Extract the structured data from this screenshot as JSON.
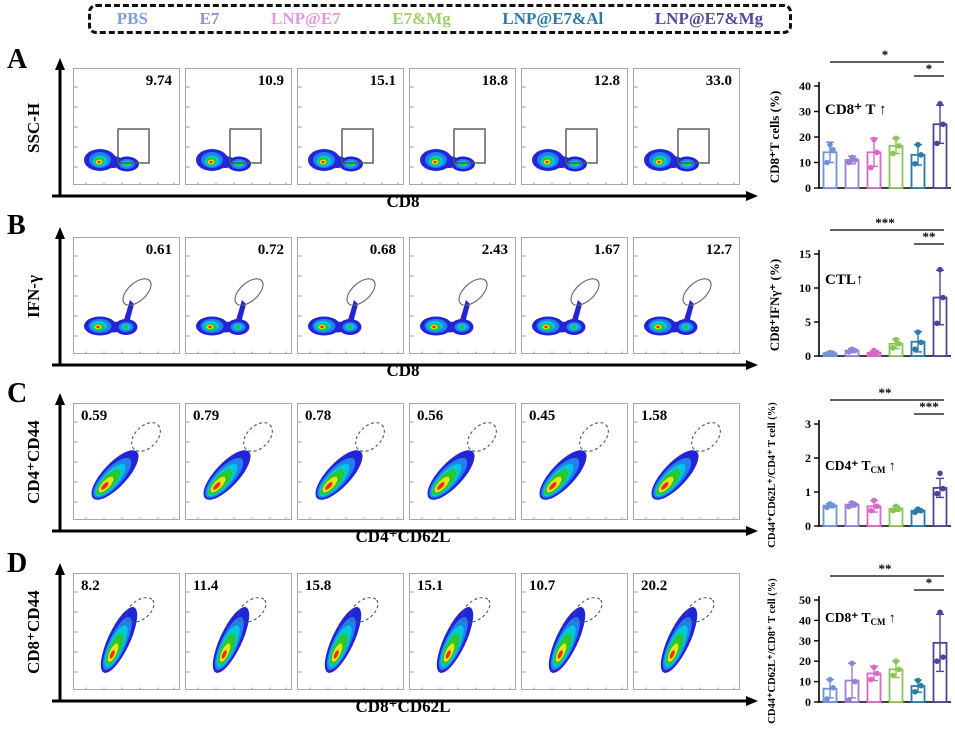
{
  "legend": {
    "items": [
      {
        "label": "PBS",
        "color": "#7d9fd9"
      },
      {
        "label": "E7",
        "color": "#a08ad8"
      },
      {
        "label": "LNP@E7",
        "color": "#e39ae0"
      },
      {
        "label": "E7&Mg",
        "color": "#9ed06a"
      },
      {
        "label": "LNP@E7&Al",
        "color": "#2a7ca8"
      },
      {
        "label": "LNP@E7&Mg",
        "color": "#574a9e"
      }
    ]
  },
  "group_colors": [
    "#6e93d6",
    "#9a7fd6",
    "#d768c9",
    "#8cc455",
    "#2a7ca8",
    "#4f4299"
  ],
  "chart_data": [
    {
      "panel": "A",
      "flow": {
        "y_axis": "SSC-H",
        "x_axis": "CD8",
        "blob": "two-blob",
        "gate": "rect",
        "value_pos": "top-right",
        "values": [
          "9.74",
          "10.9",
          "15.1",
          "18.8",
          "12.8",
          "33.0"
        ]
      },
      "bar": {
        "type": "bar",
        "categories": [
          "PBS",
          "E7",
          "LNP@E7",
          "E7&Mg",
          "LNP@E7&Al",
          "LNP@E7&Mg"
        ],
        "ylabel": "CD8⁺T cells (%)",
        "ylim": [
          0,
          40
        ],
        "yticks": [
          0,
          10,
          20,
          30,
          40
        ],
        "values": [
          14,
          11,
          14,
          16.5,
          13,
          25
        ],
        "errors": [
          4,
          1.5,
          5.5,
          3,
          4,
          7.5
        ],
        "dots": [
          [
            10,
            15,
            17
          ],
          [
            10,
            11,
            12
          ],
          [
            8,
            14,
            19
          ],
          [
            13.5,
            16.5,
            19.5
          ],
          [
            9.5,
            13,
            17
          ],
          [
            17.5,
            25,
            33
          ]
        ],
        "annotation": {
          "main": "CD8⁺ T",
          "sub": "",
          "arrow": " ↑"
        },
        "sig": [
          {
            "from": 0,
            "to": 5,
            "stars": "*"
          },
          {
            "from": 4,
            "to": 5,
            "stars": "*"
          }
        ]
      }
    },
    {
      "panel": "B",
      "flow": {
        "y_axis": "IFN-γ",
        "x_axis": "CD8",
        "blob": "two-blob-spike",
        "gate": "ellipse-solid",
        "value_pos": "top-right",
        "values": [
          "0.61",
          "0.72",
          "0.68",
          "2.43",
          "1.67",
          "12.7"
        ]
      },
      "bar": {
        "type": "bar",
        "categories": [
          "PBS",
          "E7",
          "LNP@E7",
          "E7&Mg",
          "LNP@E7&Al",
          "LNP@E7&Mg"
        ],
        "ylabel": "CD8⁺IFNγ⁺ (%)",
        "ylim": [
          0,
          15
        ],
        "yticks": [
          0,
          5,
          10,
          15
        ],
        "values": [
          0.4,
          0.8,
          0.5,
          1.8,
          2.1,
          8.6
        ],
        "errors": [
          0.15,
          0.3,
          0.3,
          0.7,
          1.5,
          4
        ],
        "dots": [
          [
            0.3,
            0.4,
            0.5
          ],
          [
            0.6,
            0.8,
            1.0
          ],
          [
            0.3,
            0.5,
            0.8
          ],
          [
            1.2,
            1.8,
            2.4
          ],
          [
            1.0,
            2.0,
            3.5
          ],
          [
            4.8,
            8.6,
            12.7
          ]
        ],
        "annotation": {
          "main": "CTL",
          "sub": "",
          "arrow": "↑"
        },
        "sig": [
          {
            "from": 0,
            "to": 5,
            "stars": "***"
          },
          {
            "from": 4,
            "to": 5,
            "stars": "**"
          }
        ]
      }
    },
    {
      "panel": "C",
      "flow": {
        "y_axis": "CD4⁺CD44",
        "x_axis": "CD4⁺CD62L",
        "blob": "comet-diag",
        "gate": "ellipse-dashed-diag",
        "value_pos": "top-left",
        "values": [
          "0.59",
          "0.79",
          "0.78",
          "0.56",
          "0.45",
          "1.58"
        ]
      },
      "bar": {
        "type": "bar",
        "categories": [
          "PBS",
          "E7",
          "LNP@E7",
          "E7&Mg",
          "LNP@E7&Al",
          "LNP@E7&Mg"
        ],
        "ylabel": "CD44⁺CD62L⁺/CD4⁺ T cell (%)",
        "ylim": [
          0,
          3
        ],
        "yticks": [
          0,
          1,
          2,
          3
        ],
        "values": [
          0.6,
          0.63,
          0.58,
          0.51,
          0.45,
          1.12
        ],
        "errors": [
          0.06,
          0.07,
          0.17,
          0.08,
          0.05,
          0.28
        ],
        "dots": [
          [
            0.55,
            0.6,
            0.65
          ],
          [
            0.57,
            0.63,
            0.68
          ],
          [
            0.45,
            0.58,
            0.75
          ],
          [
            0.45,
            0.5,
            0.58
          ],
          [
            0.4,
            0.45,
            0.5
          ],
          [
            0.95,
            1.1,
            1.55
          ]
        ],
        "annotation": {
          "main": "CD4⁺ T",
          "sub": "CM",
          "arrow": " ↑"
        },
        "sig": [
          {
            "from": 0,
            "to": 5,
            "stars": "**"
          },
          {
            "from": 4,
            "to": 5,
            "stars": "***"
          }
        ]
      }
    },
    {
      "panel": "D",
      "flow": {
        "y_axis": "CD8⁺CD44",
        "x_axis": "CD8⁺CD62L",
        "blob": "comet-vert",
        "gate": "ellipse-dashed-vert",
        "value_pos": "top-left",
        "values": [
          "8.2",
          "11.4",
          "15.8",
          "15.1",
          "10.7",
          "20.2"
        ]
      },
      "bar": {
        "type": "bar",
        "categories": [
          "PBS",
          "E7",
          "LNP@E7",
          "E7&Mg",
          "LNP@E7&Al",
          "LNP@E7&Mg"
        ],
        "ylabel": "CD44⁺CD62L⁺/CD8⁺ T cell (%)",
        "ylim": [
          0,
          50
        ],
        "yticks": [
          0,
          10,
          20,
          30,
          40,
          50
        ],
        "values": [
          6.5,
          10.5,
          14,
          16,
          7.8,
          29
        ],
        "errors": [
          4.5,
          8.5,
          3.5,
          4,
          3,
          14
        ],
        "dots": [
          [
            1.5,
            7,
            11
          ],
          [
            1,
            10,
            19
          ],
          [
            11,
            14,
            17
          ],
          [
            13,
            16,
            20
          ],
          [
            5,
            8,
            10.5
          ],
          [
            20,
            22,
            44
          ]
        ],
        "annotation": {
          "main": "CD8⁺ T",
          "sub": "CM",
          "arrow": " ↑"
        },
        "sig": [
          {
            "from": 0,
            "to": 5,
            "stars": "**"
          },
          {
            "from": 4,
            "to": 5,
            "stars": "*"
          }
        ]
      }
    }
  ]
}
